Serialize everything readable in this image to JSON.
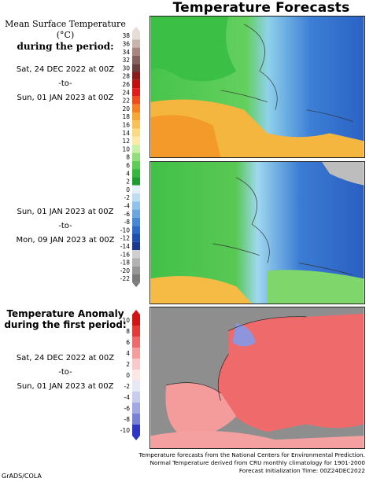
{
  "title": "Temperature Forecasts",
  "legend": {
    "title_line1": "Mean Surface Temperature (°C)",
    "title_line2": "during the period:",
    "temp_scale": [
      "38",
      "36",
      "34",
      "32",
      "30",
      "28",
      "26",
      "24",
      "22",
      "20",
      "18",
      "16",
      "14",
      "12",
      "10",
      "8",
      "6",
      "4",
      "2",
      "0",
      "-2",
      "-4",
      "-6",
      "-8",
      "-10",
      "-12",
      "-14",
      "-16",
      "-18",
      "-20",
      "-22"
    ],
    "temp_colors": [
      "#e8dcd6",
      "#c9b4ac",
      "#a88680",
      "#86615e",
      "#6c3f3f",
      "#8c1a1a",
      "#c10f0f",
      "#e21a1a",
      "#f04b1b",
      "#f57f22",
      "#f8a636",
      "#f9c257",
      "#fbda84",
      "#fde9aa",
      "#c9f0a8",
      "#91df7a",
      "#5ccc56",
      "#32b83c",
      "#1c9b30",
      "#e4f1f8",
      "#bfdcf3",
      "#91c2ec",
      "#6ba6e3",
      "#4788d6",
      "#2b6bc7",
      "#1f4fae",
      "#1b3a8d",
      "#cfcfcf",
      "#b2b2b2",
      "#969696",
      "#7a7a7a"
    ],
    "anom_title_line1": "Temperature Anomaly",
    "anom_title_line2": "during the first period:",
    "anom_scale": [
      "10",
      "8",
      "6",
      "4",
      "2",
      "0",
      "-2",
      "-4",
      "-6",
      "-8",
      "-10"
    ],
    "anom_colors": [
      "#d11515",
      "#e43a3a",
      "#ef6a6a",
      "#f59c9c",
      "#f9c9c9",
      "#fde6e6",
      "#e6e8f6",
      "#c8ccef",
      "#a2a8e4",
      "#7a80d6",
      "#2f36c4"
    ]
  },
  "periods": [
    {
      "start": "Sat, 24 DEC 2022 at 00Z",
      "sep": "-to-",
      "end": "Sun, 01 JAN 2023 at 00Z"
    },
    {
      "start": "Sun, 01 JAN 2023 at 00Z",
      "sep": "-to-",
      "end": "Mon, 09 JAN 2023 at 00Z"
    },
    {
      "start": "Sat, 24 DEC 2022 at 00Z",
      "sep": "-to-",
      "end": "Sun, 01 JAN 2023 at 00Z"
    }
  ],
  "credits": {
    "line1": "Temperature forecasts from the National Centers for Environmental Prediction.",
    "line2": "Normal Temperature derived from CRU monthly climatology for 1901-2000",
    "line3": "Forecast Initialization Time: 00Z24DEC2022"
  },
  "footer": "GrADS/COLA",
  "maps": {
    "land_green": "#3fc24a",
    "sea_blue": "#2f6fd0",
    "warm_orange": "#f7b33a",
    "anom_red": "#ee5a5a",
    "ocean_grey": "#8c8c8c"
  }
}
